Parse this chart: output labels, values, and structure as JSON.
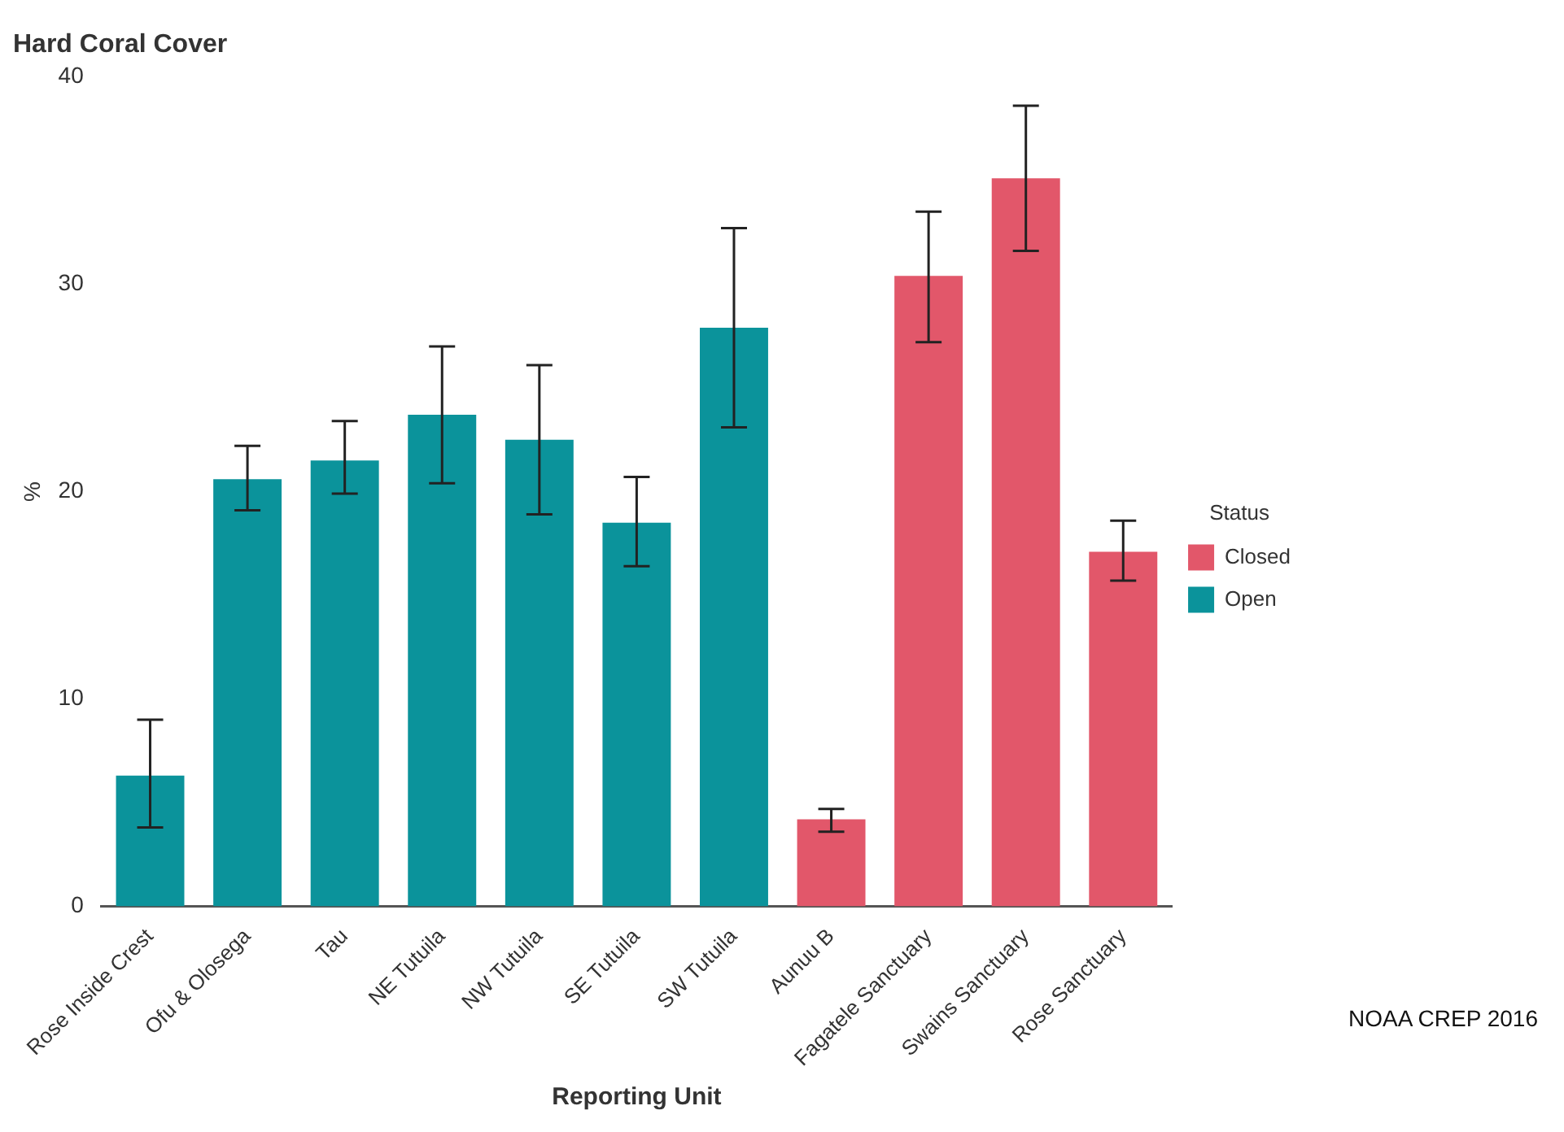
{
  "chart_data": {
    "type": "bar",
    "title": "Hard Coral Cover",
    "xlabel": "Reporting Unit",
    "ylabel": "%",
    "legend_title": "Status",
    "legend": "right",
    "grid": false,
    "categories": [
      "Rose Inside Crest",
      "Ofu & Olosega",
      "Tau",
      "NE Tutuila",
      "NW Tutuila",
      "SE Tutuila",
      "SW Tutuila",
      "Aunuu B",
      "Fagatele Sanctuary",
      "Swains Sanctuary",
      "Rose Sanctuary"
    ],
    "series": [
      {
        "name": "Closed",
        "color": "#e2576a",
        "values": [
          null,
          null,
          null,
          null,
          null,
          null,
          null,
          4.2,
          30.4,
          35.1,
          17.1
        ],
        "errors": [
          null,
          null,
          null,
          null,
          null,
          null,
          null,
          [
            3.6,
            4.7
          ],
          [
            27.2,
            33.5
          ],
          [
            31.6,
            38.6
          ],
          [
            15.7,
            18.6
          ]
        ]
      },
      {
        "name": "Open",
        "color": "#0b939b",
        "values": [
          6.3,
          20.6,
          21.5,
          23.7,
          22.5,
          18.5,
          27.9,
          null,
          null,
          null,
          null
        ],
        "errors": [
          [
            3.8,
            9.0
          ],
          [
            19.1,
            22.2
          ],
          [
            19.9,
            23.4
          ],
          [
            20.4,
            27.0
          ],
          [
            18.9,
            26.1
          ],
          [
            16.4,
            20.7
          ],
          [
            23.1,
            32.7
          ],
          null,
          null,
          null,
          null
        ]
      }
    ],
    "ylim": [
      0,
      40
    ],
    "yticks": [
      0,
      10,
      20,
      30,
      40
    ],
    "annotations": [
      "NOAA CREP 2016"
    ]
  }
}
